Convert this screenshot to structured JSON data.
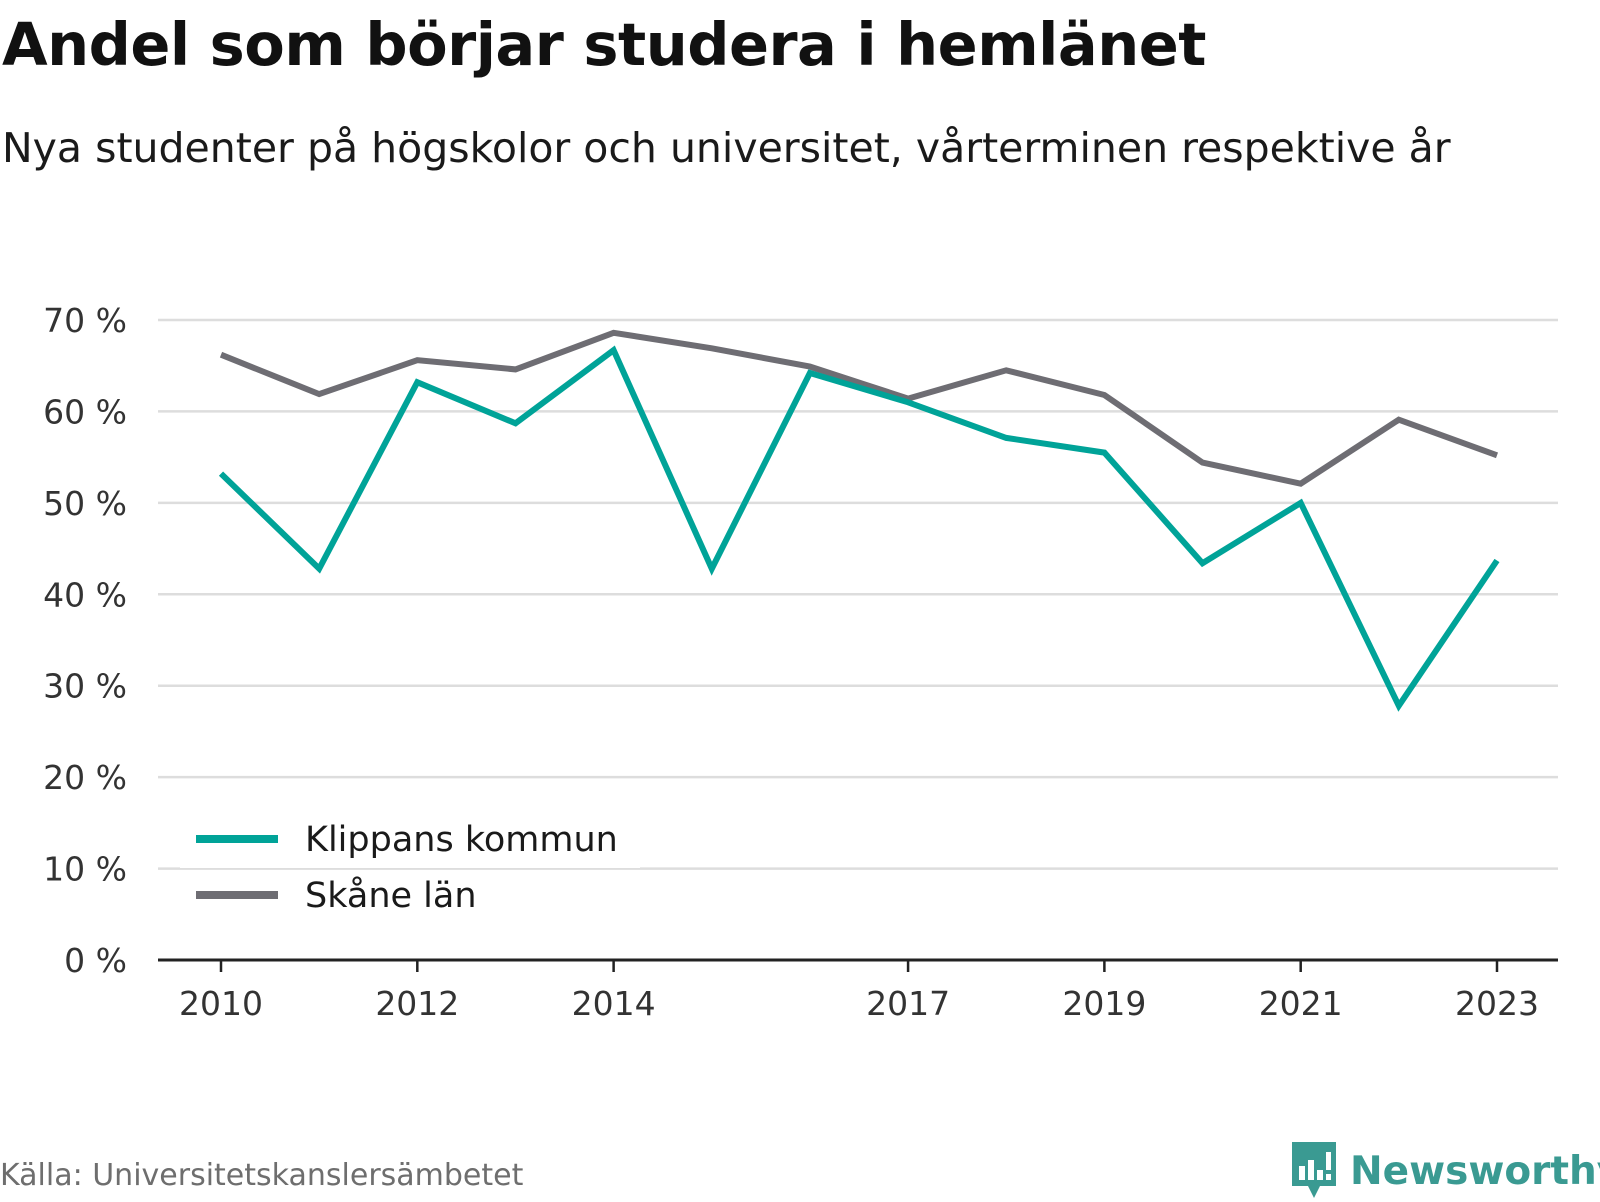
{
  "title": "Andel som börjar studera i hemlänet",
  "subtitle": "Nya studenter på högskolor och universitet, vårterminen respektive år",
  "source": "Källa: Universitetskanslersämbetet",
  "brand": {
    "name": "Newsworthy",
    "icon": "newsworthy-logo-icon",
    "color": "#3a9a92"
  },
  "colors": {
    "klippan": "#00a398",
    "skane": "#6e6d73",
    "grid": "#dddddd",
    "axis": "#222222"
  },
  "chart_data": {
    "type": "line",
    "x": [
      2010,
      2011,
      2012,
      2013,
      2014,
      2015,
      2016,
      2017,
      2018,
      2019,
      2020,
      2021,
      2022,
      2023
    ],
    "x_tick_labels": [
      "2010",
      "2012",
      "2014",
      "2017",
      "2019",
      "2021",
      "2023"
    ],
    "y_tick_labels": [
      "0 %",
      "10 %",
      "20 %",
      "30 %",
      "40 %",
      "50 %",
      "60 %",
      "70 %"
    ],
    "ylim": [
      0,
      70
    ],
    "grid": true,
    "legend_position": "bottom-left",
    "series": [
      {
        "name": "Klippans kommun",
        "color": "#00a398",
        "values": [
          53.2,
          42.8,
          63.2,
          58.7,
          66.7,
          42.8,
          64.2,
          61.0,
          57.1,
          55.5,
          43.4,
          50.0,
          27.8,
          43.7
        ]
      },
      {
        "name": "Skåne län",
        "color": "#6e6d73",
        "values": [
          66.2,
          61.9,
          65.6,
          64.6,
          68.6,
          66.9,
          64.9,
          61.4,
          64.5,
          61.8,
          54.4,
          52.1,
          59.1,
          55.2
        ]
      }
    ]
  }
}
